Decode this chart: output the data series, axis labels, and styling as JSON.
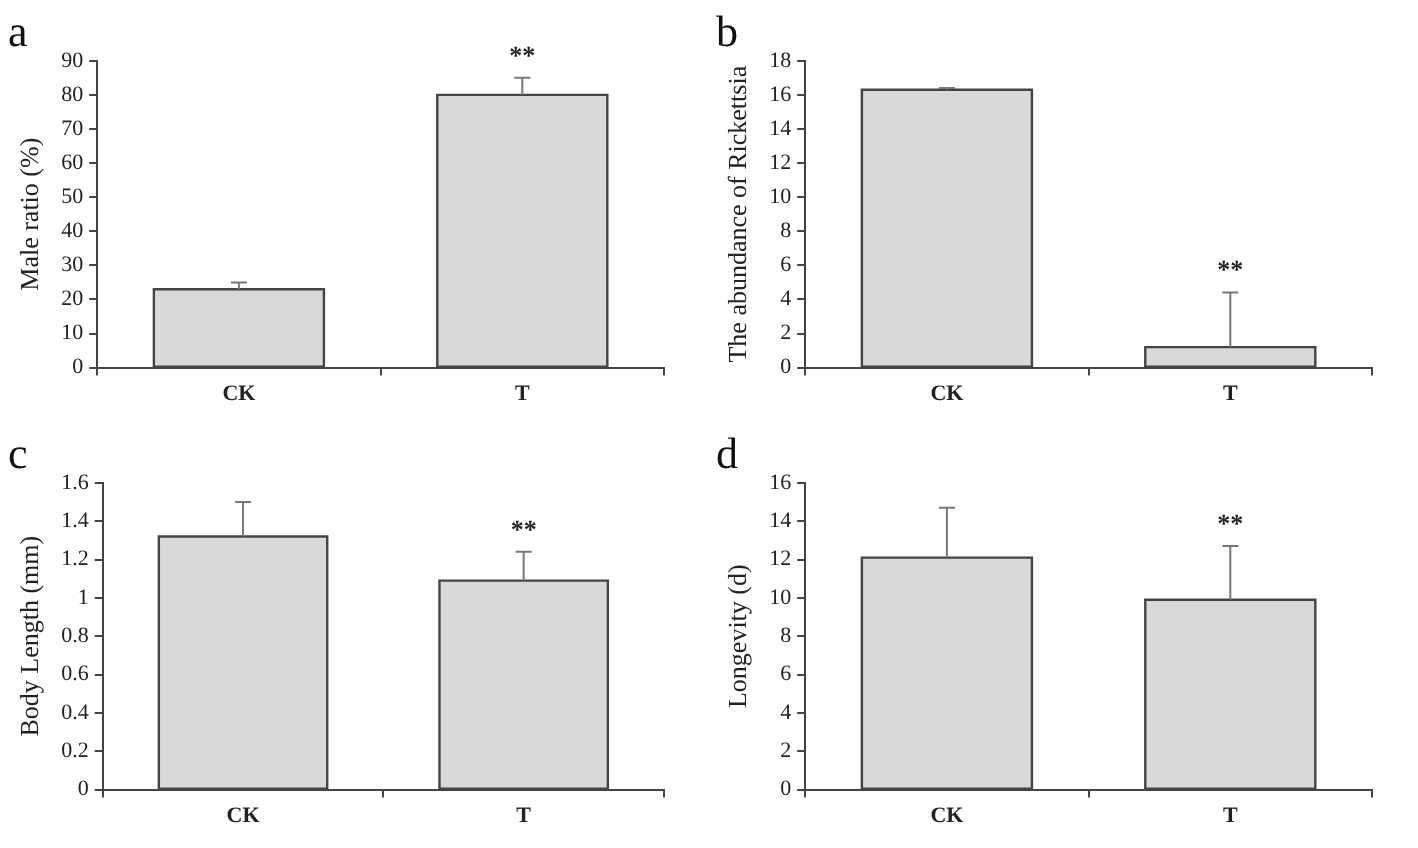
{
  "chart_data": [
    {
      "type": "bar",
      "title": "a",
      "ylabel": "Male ratio (%)",
      "categories": [
        "CK",
        "T"
      ],
      "color": "#d9d9d9",
      "values": [
        23,
        80
      ],
      "errors": [
        [
          23,
          25
        ],
        [
          80,
          85
        ]
      ],
      "ylim": [
        0,
        90
      ],
      "yticks": [
        0,
        10,
        20,
        30,
        40,
        50,
        60,
        70,
        80,
        90
      ],
      "grid": false,
      "legend": false,
      "annotations": [
        {
          "text": "**",
          "x": "T",
          "y": 85
        }
      ]
    },
    {
      "type": "bar",
      "title": "b",
      "ylabel": "The abundance of Rickettsia",
      "categories": [
        "CK",
        "T"
      ],
      "color": "#d9d9d9",
      "values": [
        16.3,
        1.2
      ],
      "errors": [
        [
          16.3,
          16.4
        ],
        [
          1.2,
          4.4
        ]
      ],
      "ylim": [
        0,
        18
      ],
      "yticks": [
        0,
        2,
        4,
        6,
        8,
        10,
        12,
        14,
        16,
        18
      ],
      "grid": false,
      "legend": false,
      "annotations": [
        {
          "text": "**",
          "x": "T",
          "y": 4.4
        }
      ]
    },
    {
      "type": "bar",
      "title": "c",
      "ylabel": "Body Length (mm)",
      "categories": [
        "CK",
        "T"
      ],
      "color": "#d9d9d9",
      "values": [
        1.32,
        1.09
      ],
      "errors": [
        [
          1.32,
          1.5
        ],
        [
          1.09,
          1.24
        ]
      ],
      "ylim": [
        0,
        1.6
      ],
      "yticks": [
        0,
        0.2,
        0.4,
        0.6,
        0.8,
        1,
        1.2,
        1.4,
        1.6
      ],
      "grid": false,
      "legend": false,
      "annotations": [
        {
          "text": "**",
          "x": "T",
          "y": 1.24
        }
      ]
    },
    {
      "type": "bar",
      "title": "d",
      "ylabel": "Longevity (d)",
      "categories": [
        "CK",
        "T"
      ],
      "color": "#d9d9d9",
      "values": [
        12.1,
        9.9
      ],
      "errors": [
        [
          12.1,
          14.7
        ],
        [
          9.9,
          12.7
        ]
      ],
      "ylim": [
        0,
        16
      ],
      "yticks": [
        0,
        2,
        4,
        6,
        8,
        10,
        12,
        14,
        16
      ],
      "grid": false,
      "legend": false,
      "annotations": [
        {
          "text": "**",
          "x": "T",
          "y": 12.7
        }
      ]
    }
  ]
}
